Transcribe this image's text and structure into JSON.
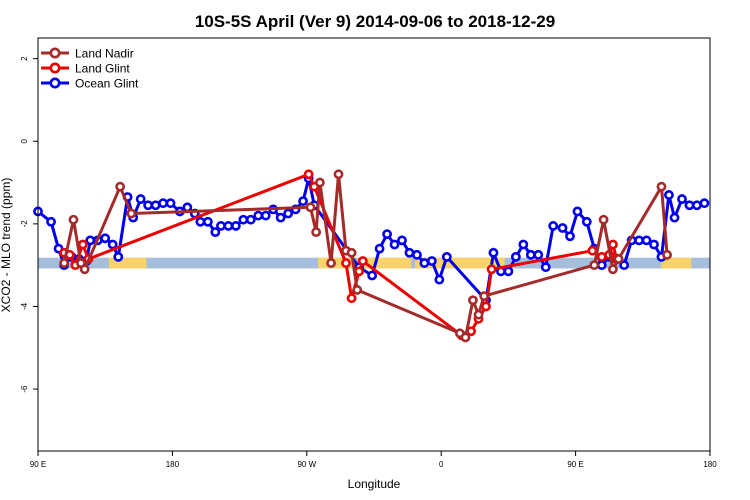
{
  "chart_data": {
    "type": "line",
    "title": "10S-5S April (Ver 9)   2014-09-06 to 2018-12-29",
    "xlabel": "Longitude",
    "ylabel": "XCO2 - MLO trend (ppm)",
    "xlim": [
      90,
      450
    ],
    "ylim": [
      -7.5,
      2.5
    ],
    "x_ticks": [
      {
        "value": 90,
        "label": "90 E"
      },
      {
        "value": 162,
        "label": "180"
      },
      {
        "value": 234,
        "label": "90 W"
      },
      {
        "value": 306,
        "label": "0"
      },
      {
        "value": 378,
        "label": "90 E"
      },
      {
        "value": 450,
        "label": "180"
      }
    ],
    "y_ticks": [
      {
        "value": 2,
        "label": "2"
      },
      {
        "value": 0,
        "label": "0"
      },
      {
        "value": -2,
        "label": "-2"
      },
      {
        "value": -4,
        "label": "-4"
      },
      {
        "value": -6,
        "label": "-6"
      }
    ],
    "band": {
      "y_center": -2.95,
      "half_height": 0.13,
      "color": "#a6bedc",
      "land_color": "#f8d36a",
      "land_ranges": [
        [
          128,
          148
        ],
        [
          240,
          260
        ],
        [
          264,
          290
        ],
        [
          292,
          340
        ],
        [
          424,
          440
        ]
      ]
    },
    "series": [
      {
        "name": "Ocean Glint",
        "color": "#0000ee",
        "points": [
          [
            90,
            -1.7
          ],
          [
            97,
            -1.95
          ],
          [
            101,
            -2.6
          ],
          [
            104,
            -3.0
          ],
          [
            108,
            -2.8
          ],
          [
            112,
            -2.85
          ],
          [
            116,
            -2.9
          ],
          [
            118,
            -2.4
          ],
          [
            122,
            -2.4
          ],
          [
            126,
            -2.35
          ],
          [
            130,
            -2.5
          ],
          [
            133,
            -2.8
          ],
          [
            138,
            -1.35
          ],
          [
            141,
            -1.85
          ],
          [
            145,
            -1.4
          ],
          [
            149,
            -1.55
          ],
          [
            153,
            -1.55
          ],
          [
            157,
            -1.5
          ],
          [
            161,
            -1.5
          ],
          [
            166,
            -1.7
          ],
          [
            170,
            -1.6
          ],
          [
            174,
            -1.75
          ],
          [
            177,
            -1.95
          ],
          [
            181,
            -1.95
          ],
          [
            185,
            -2.2
          ],
          [
            188,
            -2.05
          ],
          [
            192,
            -2.05
          ],
          [
            196,
            -2.05
          ],
          [
            200,
            -1.9
          ],
          [
            204,
            -1.9
          ],
          [
            208,
            -1.8
          ],
          [
            212,
            -1.8
          ],
          [
            216,
            -1.65
          ],
          [
            220,
            -1.85
          ],
          [
            224,
            -1.75
          ],
          [
            228,
            -1.65
          ],
          [
            232,
            -1.45
          ],
          [
            235,
            -0.9
          ],
          [
            238,
            -1.55
          ],
          [
            262,
            -3.05
          ],
          [
            269,
            -3.25
          ],
          [
            273,
            -2.6
          ],
          [
            277,
            -2.25
          ],
          [
            281,
            -2.5
          ],
          [
            285,
            -2.4
          ],
          [
            289,
            -2.7
          ],
          [
            293,
            -2.75
          ],
          [
            297,
            -2.95
          ],
          [
            301,
            -2.9
          ],
          [
            305,
            -3.35
          ],
          [
            309,
            -2.8
          ],
          [
            330,
            -3.85
          ],
          [
            334,
            -2.7
          ],
          [
            338,
            -3.15
          ],
          [
            342,
            -3.15
          ],
          [
            346,
            -2.8
          ],
          [
            350,
            -2.5
          ],
          [
            354,
            -2.75
          ],
          [
            358,
            -2.75
          ],
          [
            362,
            -3.05
          ],
          [
            366,
            -2.05
          ],
          [
            371,
            -2.1
          ],
          [
            375,
            -2.3
          ],
          [
            379,
            -1.7
          ],
          [
            384,
            -1.95
          ],
          [
            388,
            -2.6
          ],
          [
            392,
            -3.0
          ],
          [
            396,
            -2.8
          ],
          [
            400,
            -2.85
          ],
          [
            404,
            -3.0
          ],
          [
            408,
            -2.4
          ],
          [
            412,
            -2.4
          ],
          [
            416,
            -2.4
          ],
          [
            420,
            -2.5
          ],
          [
            424,
            -2.8
          ],
          [
            428,
            -1.3
          ],
          [
            431,
            -1.85
          ],
          [
            435,
            -1.4
          ],
          [
            439,
            -1.55
          ],
          [
            443,
            -1.55
          ],
          [
            447,
            -1.5
          ]
        ]
      },
      {
        "name": "Land Glint",
        "color": "#ee0000",
        "points": [
          [
            104,
            -2.7
          ],
          [
            107,
            -2.75
          ],
          [
            110,
            -3.0
          ],
          [
            114,
            -2.5
          ],
          [
            117,
            -2.85
          ],
          [
            235,
            -0.8
          ],
          [
            238,
            -1.1
          ],
          [
            255,
            -2.95
          ],
          [
            258,
            -3.8
          ],
          [
            262,
            -3.15
          ],
          [
            264,
            -2.9
          ],
          [
            317,
            -4.7
          ],
          [
            322,
            -4.6
          ],
          [
            326,
            -4.3
          ],
          [
            330,
            -4.0
          ],
          [
            333,
            -3.1
          ],
          [
            387,
            -2.65
          ],
          [
            392,
            -2.8
          ],
          [
            396,
            -2.75
          ],
          [
            398,
            -2.5
          ],
          [
            400,
            -2.85
          ]
        ]
      },
      {
        "name": "Land Nadir",
        "color": "#a52a2a",
        "points": [
          [
            104,
            -2.95
          ],
          [
            109,
            -1.9
          ],
          [
            113,
            -2.95
          ],
          [
            115,
            -3.1
          ],
          [
            134,
            -1.1
          ],
          [
            140,
            -1.75
          ],
          [
            236,
            -1.6
          ],
          [
            239,
            -2.2
          ],
          [
            241,
            -1.0
          ],
          [
            247,
            -2.95
          ],
          [
            251,
            -0.8
          ],
          [
            255,
            -2.65
          ],
          [
            258,
            -2.7
          ],
          [
            261,
            -3.6
          ],
          [
            316,
            -4.65
          ],
          [
            319,
            -4.75
          ],
          [
            323,
            -3.85
          ],
          [
            326,
            -4.2
          ],
          [
            329,
            -3.75
          ],
          [
            388,
            -3.0
          ],
          [
            393,
            -1.9
          ],
          [
            398,
            -3.1
          ],
          [
            401,
            -2.85
          ],
          [
            424,
            -1.1
          ],
          [
            427,
            -2.75
          ]
        ]
      }
    ],
    "legend": {
      "position": "top-left",
      "entries": [
        {
          "label": "Land Nadir",
          "color": "#a52a2a"
        },
        {
          "label": "Land Glint",
          "color": "#ee0000"
        },
        {
          "label": "Ocean Glint",
          "color": "#0000ee"
        }
      ]
    },
    "grid": false
  }
}
